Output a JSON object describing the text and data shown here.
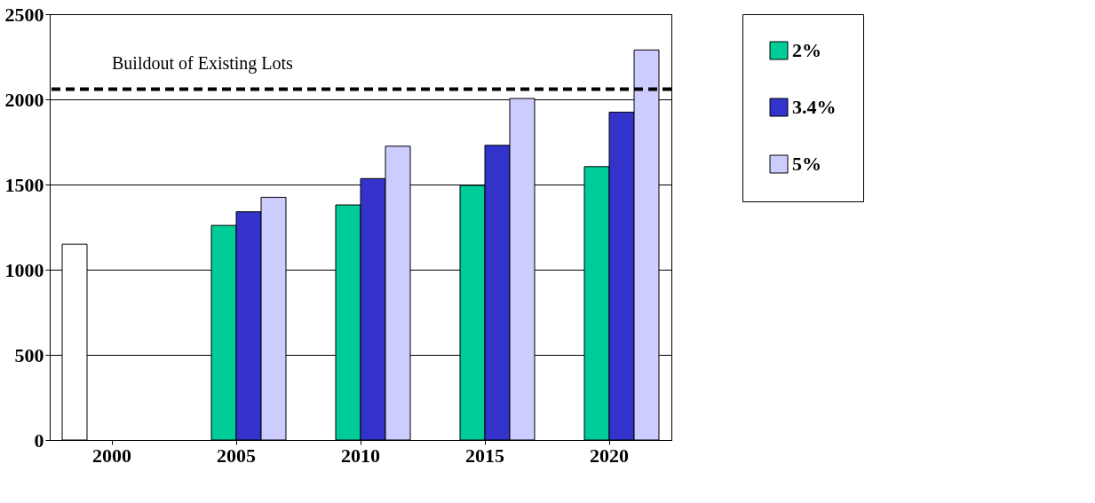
{
  "chart_data": {
    "type": "bar",
    "categories": [
      "2000",
      "2005",
      "2010",
      "2015",
      "2020"
    ],
    "series": [
      {
        "color": "#ffffff",
        "values": [
          1150,
          null,
          null,
          null,
          null
        ]
      },
      {
        "name": "2%",
        "color": "#00cc99",
        "values": [
          null,
          1260,
          1380,
          1495,
          1605
        ]
      },
      {
        "name": "3.4%",
        "color": "#3333cc",
        "values": [
          null,
          1340,
          1535,
          1730,
          1925
        ]
      },
      {
        "name": "5%",
        "color": "#ccccff",
        "values": [
          null,
          1425,
          1725,
          2005,
          2290
        ]
      }
    ],
    "ylim": [
      0,
      2500
    ],
    "yticks": [
      0,
      500,
      1000,
      1500,
      2000,
      2500
    ],
    "grid": "y",
    "legend": "right",
    "ref_lines": [
      {
        "axis": "y",
        "value": 2060,
        "label": "Buildout of Existing Lots",
        "line_style": "dashed",
        "color": "#000000"
      }
    ]
  }
}
